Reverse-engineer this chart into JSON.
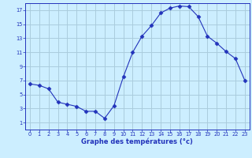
{
  "x": [
    0,
    1,
    2,
    3,
    4,
    5,
    6,
    7,
    8,
    9,
    10,
    11,
    12,
    13,
    14,
    15,
    16,
    17,
    18,
    19,
    20,
    21,
    22,
    23
  ],
  "y": [
    6.5,
    6.3,
    5.8,
    3.9,
    3.6,
    3.3,
    2.6,
    2.6,
    1.6,
    3.4,
    7.5,
    11.0,
    13.3,
    14.8,
    16.6,
    17.3,
    17.6,
    17.5,
    16.1,
    13.3,
    12.3,
    11.1,
    10.1,
    7.0
  ],
  "line_color": "#2233bb",
  "marker": "D",
  "marker_size": 2.5,
  "bg_color": "#cceeff",
  "grid_color": "#aaccdd",
  "axis_color": "#2233bb",
  "xlabel": "Graphe des températures (°c)",
  "xlim": [
    -0.5,
    23.5
  ],
  "ylim": [
    0,
    18
  ],
  "yticks": [
    1,
    3,
    5,
    7,
    9,
    11,
    13,
    15,
    17
  ],
  "xticks": [
    0,
    1,
    2,
    3,
    4,
    5,
    6,
    7,
    8,
    9,
    10,
    11,
    12,
    13,
    14,
    15,
    16,
    17,
    18,
    19,
    20,
    21,
    22,
    23
  ]
}
